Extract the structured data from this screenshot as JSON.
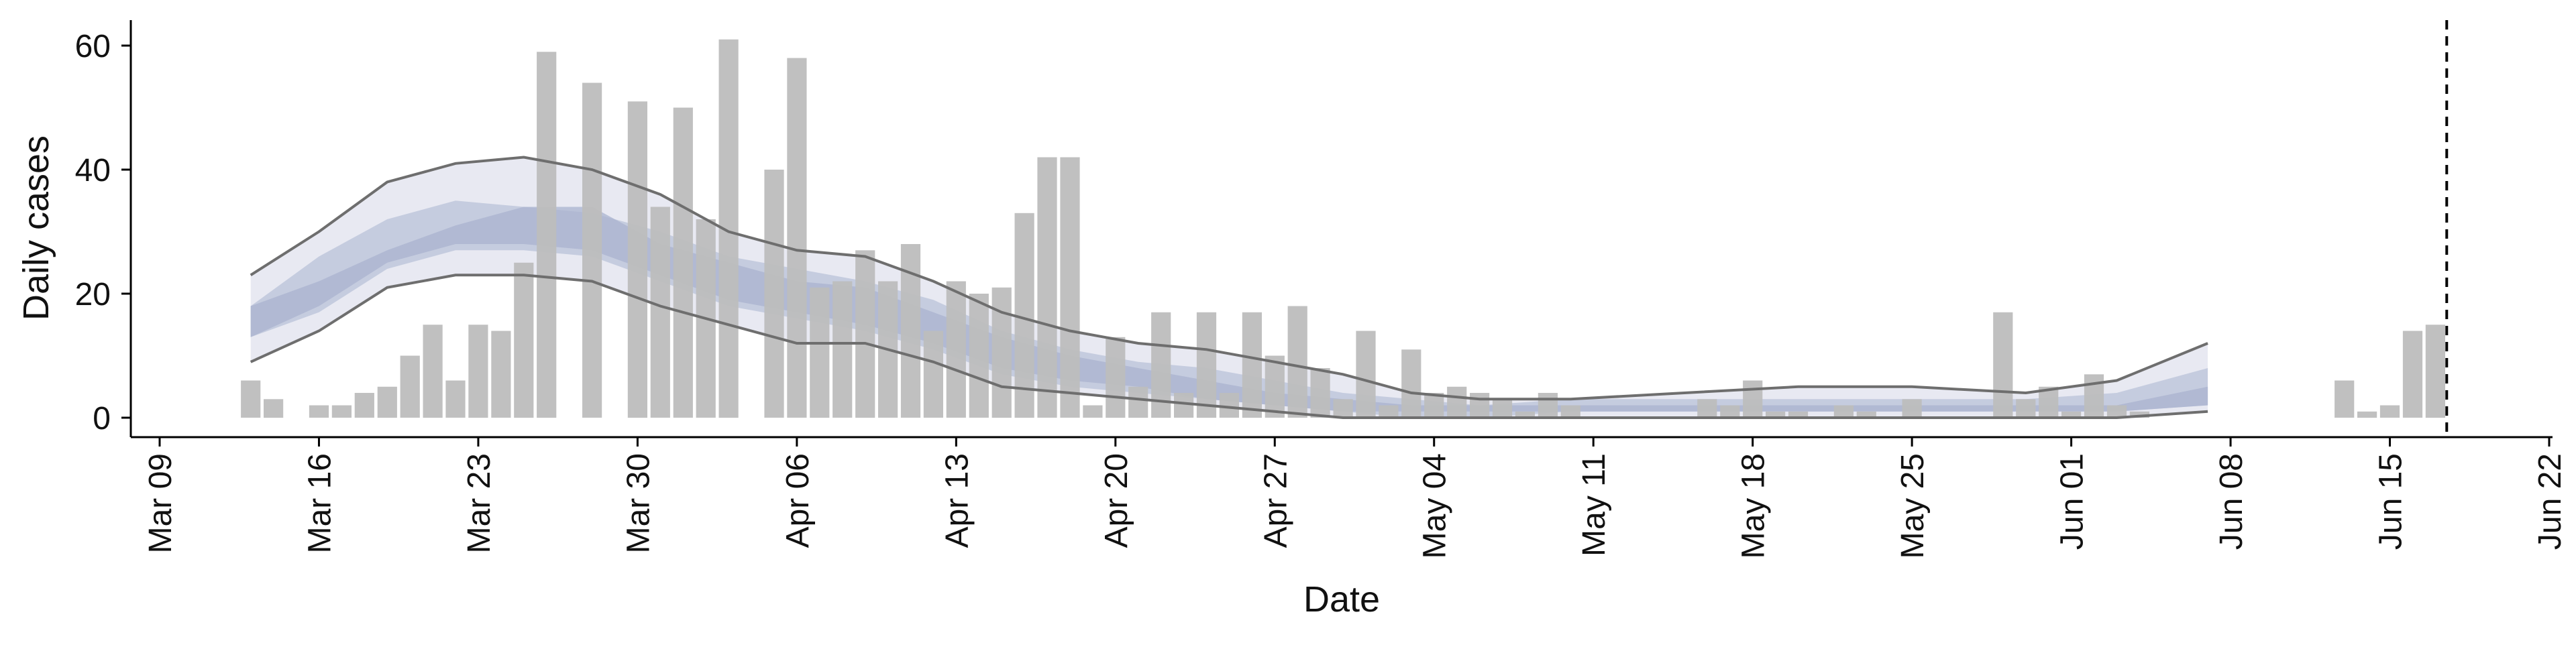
{
  "chart_data": {
    "type": "bar",
    "xlabel": "Date",
    "ylabel": "Daily cases",
    "x_ticks": [
      "Mar 09",
      "Mar 16",
      "Mar 23",
      "Mar 30",
      "Apr 06",
      "Apr 13",
      "Apr 20",
      "Apr 27",
      "May 04",
      "May 11",
      "May 18",
      "May 25",
      "Jun 01",
      "Jun 08",
      "Jun 15",
      "Jun 22"
    ],
    "y_ticks": [
      0,
      20,
      40,
      60
    ],
    "ylim": [
      -2,
      64
    ],
    "xlim": [
      "2020-03-09",
      "2020-06-22"
    ],
    "grid": false,
    "legend": "none",
    "colors": {
      "bars": "#bdbdbd",
      "band_outer": "#e8e9f2",
      "band_mid": "#c5ccdf",
      "band_inner": "#a9b3cf",
      "lines": "#6e6e6e",
      "marker_line": "#000000"
    },
    "vertical_marker_date": "2020-06-17",
    "series": [
      {
        "kind": "bar",
        "dates": [
          "2020-03-13",
          "2020-03-14",
          "2020-03-16",
          "2020-03-17",
          "2020-03-18",
          "2020-03-19",
          "2020-03-20",
          "2020-03-21",
          "2020-03-22",
          "2020-03-23",
          "2020-03-24",
          "2020-03-25",
          "2020-03-26",
          "2020-03-28",
          "2020-03-30",
          "2020-03-31",
          "2020-04-01",
          "2020-04-02",
          "2020-04-03",
          "2020-04-05",
          "2020-04-06",
          "2020-04-07",
          "2020-04-08",
          "2020-04-09",
          "2020-04-10",
          "2020-04-11",
          "2020-04-12",
          "2020-04-13",
          "2020-04-14",
          "2020-04-15",
          "2020-04-16",
          "2020-04-17",
          "2020-04-18",
          "2020-04-19",
          "2020-04-20",
          "2020-04-21",
          "2020-04-22",
          "2020-04-23",
          "2020-04-24",
          "2020-04-25",
          "2020-04-26",
          "2020-04-27",
          "2020-04-28",
          "2020-04-29",
          "2020-04-30",
          "2020-05-01",
          "2020-05-02",
          "2020-05-03",
          "2020-05-04",
          "2020-05-05",
          "2020-05-06",
          "2020-05-07",
          "2020-05-08",
          "2020-05-09",
          "2020-05-10",
          "2020-05-16",
          "2020-05-17",
          "2020-05-18",
          "2020-05-19",
          "2020-05-20",
          "2020-05-22",
          "2020-05-23",
          "2020-05-25",
          "2020-05-29",
          "2020-05-30",
          "2020-05-31",
          "2020-06-01",
          "2020-06-02",
          "2020-06-03",
          "2020-06-04",
          "2020-06-13",
          "2020-06-14",
          "2020-06-15",
          "2020-06-16",
          "2020-06-17"
        ],
        "values": [
          6,
          3,
          2,
          2,
          4,
          5,
          10,
          15,
          6,
          15,
          14,
          25,
          59,
          54,
          51,
          34,
          50,
          32,
          61,
          40,
          58,
          21,
          22,
          27,
          22,
          28,
          14,
          22,
          20,
          21,
          33,
          42,
          42,
          2,
          13,
          5,
          17,
          4,
          17,
          4,
          17,
          10,
          18,
          8,
          3,
          14,
          2,
          11,
          4,
          5,
          4,
          3,
          1,
          4,
          2,
          3,
          2,
          6,
          1,
          1,
          2,
          1,
          3,
          17,
          3,
          5,
          1,
          7,
          2,
          1,
          6,
          1,
          2,
          14,
          15
        ]
      },
      {
        "kind": "band",
        "name": "",
        "dates": [
          "2020-03-13",
          "2020-03-16",
          "2020-03-19",
          "2020-03-22",
          "2020-03-25",
          "2020-03-28",
          "2020-03-31",
          "2020-04-03",
          "2020-04-06",
          "2020-04-09",
          "2020-04-12",
          "2020-04-15",
          "2020-04-18",
          "2020-04-21",
          "2020-04-24",
          "2020-04-27",
          "2020-04-30",
          "2020-05-03",
          "2020-05-06",
          "2020-05-10",
          "2020-05-15",
          "2020-05-20",
          "2020-05-25",
          "2020-05-30",
          "2020-06-03",
          "2020-06-07"
        ],
        "outer_low": [
          9,
          14,
          21,
          23,
          23,
          22,
          18,
          15,
          12,
          12,
          9,
          5,
          4,
          3,
          2,
          1,
          0,
          0,
          0,
          0,
          0,
          0,
          0,
          0,
          0,
          1
        ],
        "outer_high": [
          23,
          30,
          38,
          41,
          42,
          40,
          36,
          30,
          27,
          26,
          22,
          17,
          14,
          12,
          11,
          9,
          7,
          4,
          3,
          3,
          4,
          5,
          5,
          4,
          6,
          12
        ],
        "mid_low": [
          13,
          17,
          24,
          27,
          27,
          26,
          22,
          18,
          16,
          14,
          11,
          7,
          5,
          4,
          3,
          2,
          1,
          0,
          0,
          1,
          1,
          1,
          1,
          1,
          1,
          2
        ],
        "mid_high": [
          18,
          26,
          32,
          35,
          34,
          33,
          30,
          26,
          24,
          22,
          19,
          14,
          11,
          9,
          8,
          6,
          4,
          3,
          2,
          3,
          3,
          3,
          3,
          3,
          4,
          8
        ],
        "inner_low": [
          13,
          18,
          25,
          28,
          28,
          27,
          23,
          19,
          17,
          15,
          12,
          8,
          6,
          5,
          3,
          2,
          1,
          1,
          1,
          1,
          1,
          1,
          1,
          1,
          1,
          2
        ],
        "inner_high": [
          18,
          22,
          27,
          31,
          34,
          34,
          28,
          25,
          22,
          21,
          17,
          13,
          10,
          8,
          6,
          4,
          3,
          2,
          2,
          2,
          2,
          2,
          2,
          2,
          2,
          5
        ]
      }
    ]
  }
}
